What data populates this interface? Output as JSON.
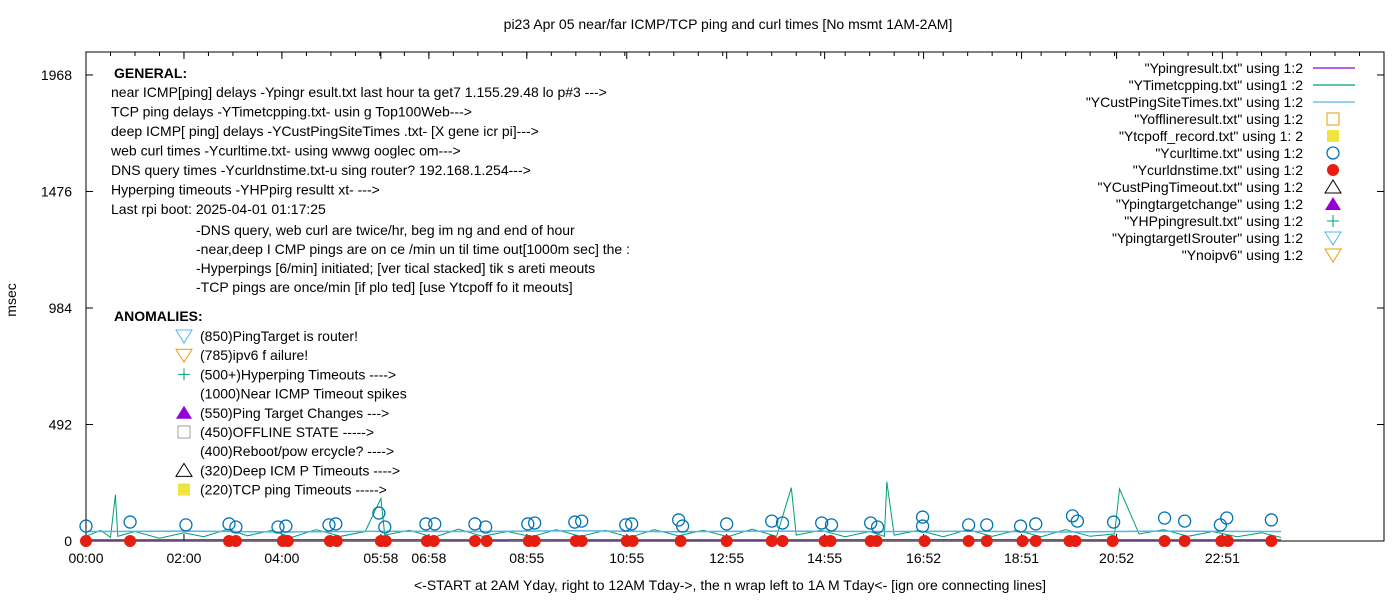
{
  "chart_data": {
    "type": "scatter",
    "title": "pi23 Apr 05  near/far ICMP/TCP ping and curl times [No msmt 1AM-2AM]",
    "xlabel": "<-START at 2AM Yday, right to 12AM Tday->, the n wrap  left to 1A M Tday<- [ign ore connecting lines]",
    "ylabel": "msec",
    "ylim": [
      0,
      2065
    ],
    "xlim_hours": [
      0,
      26.5
    ],
    "y_ticks": [
      0,
      492,
      984,
      1476,
      1968
    ],
    "x_ticks": [
      {
        "label": "00:00",
        "hour": 0
      },
      {
        "label": "02:00",
        "hour": 2
      },
      {
        "label": "04:00",
        "hour": 4
      },
      {
        "label": "05:58",
        "hour": 6.02
      },
      {
        "label": "06:58",
        "hour": 7
      },
      {
        "label": "08:55",
        "hour": 9
      },
      {
        "label": "10:55",
        "hour": 11.04
      },
      {
        "label": "12:55",
        "hour": 13.08
      },
      {
        "label": "14:55",
        "hour": 15.08
      },
      {
        "label": "16:52",
        "hour": 17.1
      },
      {
        "label": "18:51",
        "hour": 19.1
      },
      {
        "label": "20:52",
        "hour": 21.04
      },
      {
        "label": "22:51",
        "hour": 23.2
      }
    ],
    "grid": false,
    "legend_placement": "top-right",
    "series": [
      {
        "name": "\"Ypingresult.txt\" using 1:2",
        "kind": "line",
        "color": "#9400d3",
        "points": [
          [
            0,
            5
          ],
          [
            6,
            6
          ],
          [
            12,
            5
          ],
          [
            18,
            6
          ],
          [
            24.4,
            5
          ]
        ]
      },
      {
        "name": "\"YTimetcpping.txt\" using1 :2",
        "kind": "line",
        "color": "#009e73",
        "points": [
          [
            0,
            20
          ],
          [
            0.3,
            45
          ],
          [
            0.5,
            15
          ],
          [
            0.6,
            195
          ],
          [
            0.65,
            20
          ],
          [
            1,
            40
          ],
          [
            1.5,
            12
          ],
          [
            2,
            35
          ],
          [
            2.4,
            18
          ],
          [
            2.9,
            50
          ],
          [
            3.3,
            22
          ],
          [
            3.8,
            45
          ],
          [
            4.2,
            15
          ],
          [
            4.7,
            48
          ],
          [
            5.2,
            20
          ],
          [
            5.7,
            40
          ],
          [
            6.02,
            180
          ],
          [
            6.1,
            25
          ],
          [
            6.6,
            45
          ],
          [
            7.1,
            15
          ],
          [
            7.6,
            50
          ],
          [
            8.1,
            20
          ],
          [
            8.6,
            40
          ],
          [
            9.1,
            18
          ],
          [
            9.6,
            48
          ],
          [
            10.1,
            20
          ],
          [
            10.6,
            45
          ],
          [
            11.1,
            15
          ],
          [
            11.6,
            48
          ],
          [
            12.1,
            22
          ],
          [
            12.6,
            45
          ],
          [
            13.1,
            18
          ],
          [
            13.6,
            50
          ],
          [
            14.1,
            20
          ],
          [
            14.4,
            225
          ],
          [
            14.5,
            25
          ],
          [
            15,
            45
          ],
          [
            15.5,
            18
          ],
          [
            16,
            40
          ],
          [
            16.3,
            20
          ],
          [
            16.35,
            250
          ],
          [
            16.5,
            25
          ],
          [
            17,
            45
          ],
          [
            17.5,
            18
          ],
          [
            18,
            48
          ],
          [
            18.5,
            20
          ],
          [
            19,
            45
          ],
          [
            19.5,
            18
          ],
          [
            20,
            48
          ],
          [
            20.5,
            20
          ],
          [
            21.0,
            30
          ],
          [
            21.1,
            220
          ],
          [
            21.5,
            30
          ],
          [
            22,
            48
          ],
          [
            22.5,
            20
          ],
          [
            23,
            40
          ],
          [
            23.5,
            18
          ],
          [
            24,
            35
          ],
          [
            24.4,
            15
          ]
        ]
      },
      {
        "name": "\"YCustPingSiteTimes.txt\" using 1:2",
        "kind": "line",
        "color": "#56b4e9",
        "points": [
          [
            0,
            40
          ],
          [
            2,
            42
          ],
          [
            4,
            38
          ],
          [
            6,
            41
          ],
          [
            8,
            40
          ],
          [
            10,
            43
          ],
          [
            12,
            39
          ],
          [
            14,
            42
          ],
          [
            16,
            40
          ],
          [
            18,
            41
          ],
          [
            20,
            38
          ],
          [
            22,
            42
          ],
          [
            24.4,
            40
          ]
        ]
      },
      {
        "name": "\"Yofflineresult.txt\" using 1:2",
        "kind": "open-square",
        "color": "#e69f00",
        "points": []
      },
      {
        "name": "\"Ytcpoff_record.txt\" using 1: 2",
        "kind": "filled-square",
        "color": "#f0e442",
        "points": []
      },
      {
        "name": "\"Ycurltime.txt\" using 1:2",
        "kind": "open-circle",
        "color": "#0072b2",
        "points": [
          [
            0,
            63
          ],
          [
            0.9,
            80
          ],
          [
            2.04,
            68
          ],
          [
            2.92,
            72
          ],
          [
            3.06,
            59
          ],
          [
            3.92,
            59
          ],
          [
            4.08,
            63
          ],
          [
            4.96,
            68
          ],
          [
            5.1,
            72
          ],
          [
            5.98,
            118
          ],
          [
            6.1,
            59
          ],
          [
            6.94,
            72
          ],
          [
            7.12,
            72
          ],
          [
            7.94,
            72
          ],
          [
            8.16,
            59
          ],
          [
            9.02,
            72
          ],
          [
            9.16,
            76
          ],
          [
            9.98,
            80
          ],
          [
            10.12,
            84
          ],
          [
            11.02,
            68
          ],
          [
            11.14,
            72
          ],
          [
            12.1,
            89
          ],
          [
            12.18,
            63
          ],
          [
            13.08,
            72
          ],
          [
            14,
            84
          ],
          [
            14.22,
            76
          ],
          [
            15.02,
            76
          ],
          [
            15.22,
            68
          ],
          [
            16.02,
            76
          ],
          [
            16.16,
            59
          ],
          [
            17.08,
            101
          ],
          [
            17.08,
            63
          ],
          [
            18.02,
            68
          ],
          [
            18.39,
            68
          ],
          [
            19.08,
            63
          ],
          [
            19.39,
            72
          ],
          [
            20.14,
            106
          ],
          [
            20.24,
            84
          ],
          [
            20.98,
            80
          ],
          [
            22.02,
            97
          ],
          [
            22.43,
            84
          ],
          [
            23.16,
            68
          ],
          [
            23.29,
            97
          ],
          [
            24.2,
            89
          ]
        ]
      },
      {
        "name": "\"Ycurldnstime.txt\" using 1:2",
        "kind": "filled-circle",
        "color": "#e51e10",
        "points": [
          [
            0,
            0
          ],
          [
            0.9,
            0
          ],
          [
            2.92,
            0
          ],
          [
            3.06,
            0
          ],
          [
            4.02,
            0
          ],
          [
            4.12,
            0
          ],
          [
            4.98,
            0
          ],
          [
            5.12,
            0
          ],
          [
            6.02,
            0
          ],
          [
            6.12,
            0
          ],
          [
            6.96,
            0
          ],
          [
            7.1,
            0
          ],
          [
            7.94,
            0
          ],
          [
            8.18,
            0
          ],
          [
            9.04,
            0
          ],
          [
            9.16,
            0
          ],
          [
            10,
            0
          ],
          [
            10.12,
            0
          ],
          [
            11.04,
            0
          ],
          [
            11.16,
            0
          ],
          [
            12.14,
            0
          ],
          [
            13.08,
            0
          ],
          [
            14,
            0
          ],
          [
            14.22,
            0
          ],
          [
            15.08,
            0
          ],
          [
            15.2,
            0
          ],
          [
            16.02,
            0
          ],
          [
            16.14,
            0
          ],
          [
            17.12,
            0
          ],
          [
            18.02,
            0
          ],
          [
            18.39,
            0
          ],
          [
            19.12,
            0
          ],
          [
            19.39,
            0
          ],
          [
            20.08,
            0
          ],
          [
            20.2,
            0
          ],
          [
            20.96,
            0
          ],
          [
            22.02,
            0
          ],
          [
            22.43,
            0
          ],
          [
            23.18,
            0
          ],
          [
            23.31,
            0
          ],
          [
            24.2,
            0
          ]
        ]
      },
      {
        "name": "\"YCustPingTimeout.txt\" using 1:2",
        "kind": "open-triangle",
        "color": "#000000",
        "points": []
      },
      {
        "name": "\"Ypingtargetchange\" using 1:2",
        "kind": "filled-triangle",
        "color": "#9400d3",
        "points": []
      },
      {
        "name": "\"YHPpingresult.txt\" using 1:2",
        "kind": "plus",
        "color": "#009e73",
        "points": []
      },
      {
        "name": "\"YpingtargetISrouter\" using 1:2",
        "kind": "open-down-triangle",
        "color": "#56b4e9",
        "points": []
      },
      {
        "name": "\"Ynoipv6\" using 1:2",
        "kind": "open-down-triangle",
        "color": "#e69f00",
        "points": []
      }
    ],
    "annotations": {
      "general_heading": "GENERAL:",
      "general_lines": [
        "near ICMP[ping] delays -Ypingr esult.txt last hour ta get7 1.155.29.48 lo p#3 --->",
        "TCP ping delays -YTimetcpping.txt- usin g Top100Web--->",
        "deep ICMP[ ping] delays -YCustPingSiteTimes .txt- [X gene icr pi]--->",
        "web curl times -Ycurltime.txt- using wwwg ooglec  om--->",
        "DNS query times -Ycurldnstime.txt-u sing  router? 192.168.1.254--->",
        "Hyperping timeouts -YHPpirg resultt xt- --->",
        "Last rpi boot: 2025-04-01 01:17:25"
      ],
      "general_notes": [
        "-DNS query, web curl are twice/hr, beg im ng and end of hour",
        "-near,deep I CMP pings are on ce /min un til time out[1000m sec]  the :",
        " -Hyperpings [6/min] initiated; [ver tical stacked] tik  s areti meouts",
        "-TCP pings are once/min [if plo ted] [use Ytcpoff fo it meouts]"
      ],
      "anomalies_heading": "ANOMALIES:",
      "anomalies": [
        {
          "symbol": "open-down-triangle",
          "color": "#56b4e9",
          "text": "(850)PingTarget is router!"
        },
        {
          "symbol": "open-down-triangle",
          "color": "#e69f00",
          "text": "(785)ipv6 f ailure!"
        },
        {
          "symbol": "plus",
          "color": "#009e73",
          "text": "(500+)Hyperping Timeouts ---->"
        },
        {
          "symbol": "",
          "color": "",
          "text": "(1000)Near ICMP Timeout spikes"
        },
        {
          "symbol": "filled-triangle",
          "color": "#9400d3",
          "text": "(550)Ping Target Changes --->"
        },
        {
          "symbol": "open-square",
          "color": "#a0a0a0",
          "text": "(450)OFFLINE STATE ----->"
        },
        {
          "symbol": "",
          "color": "",
          "text": "(400)Reboot/pow ercycle? ---->"
        },
        {
          "symbol": "open-triangle",
          "color": "#000000",
          "text": "(320)Deep ICM P Timeouts ---->"
        },
        {
          "symbol": "filled-square",
          "color": "#f0e442",
          "text": "(220)TCP ping Timeouts ----->"
        }
      ]
    }
  }
}
